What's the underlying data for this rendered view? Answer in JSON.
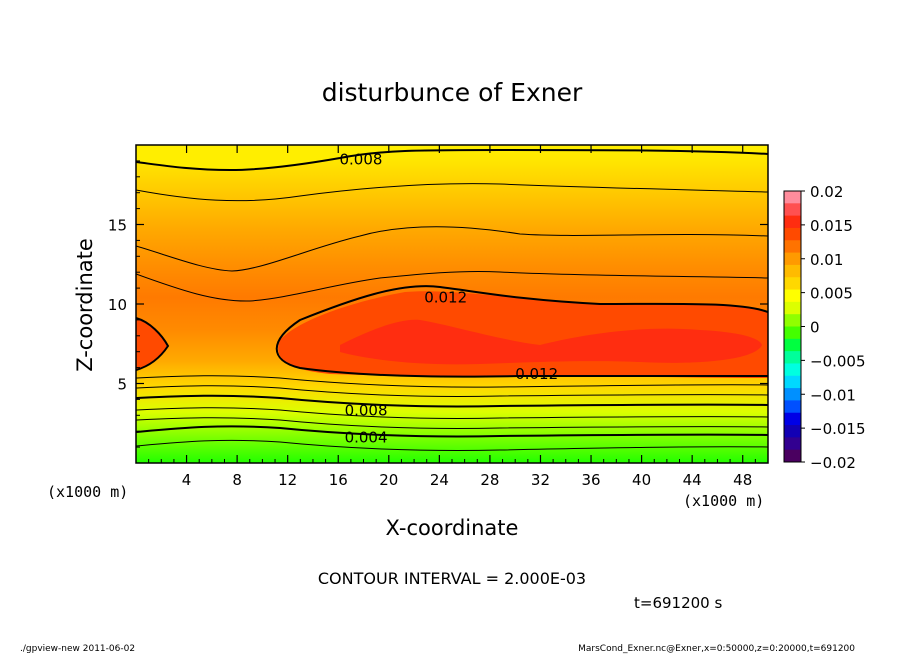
{
  "chart_data": {
    "type": "contour",
    "title": "disturbunce of Exner",
    "xlabel": "X-coordinate",
    "ylabel": "Z-coordinate",
    "x_unit_left": "(x1000 m)",
    "x_unit_right": "(x1000 m)",
    "xlim": [
      0,
      50
    ],
    "ylim": [
      0,
      20
    ],
    "x_ticks": [
      "4",
      "8",
      "12",
      "16",
      "20",
      "24",
      "28",
      "32",
      "36",
      "40",
      "44",
      "48"
    ],
    "x_tick_values": [
      4,
      8,
      12,
      16,
      20,
      24,
      28,
      32,
      36,
      40,
      44,
      48
    ],
    "y_ticks": [
      "5",
      "10",
      "15"
    ],
    "y_tick_values": [
      5,
      10,
      15
    ],
    "contour_labels": [
      {
        "text": "0.008",
        "x": 17.8,
        "z": 19.1
      },
      {
        "text": "0.012",
        "x": 24.5,
        "z": 10.4
      },
      {
        "text": "0.012",
        "x": 31.7,
        "z": 5.6
      },
      {
        "text": "0.008",
        "x": 18.2,
        "z": 3.3
      },
      {
        "text": "0.004",
        "x": 18.2,
        "z": 1.6
      }
    ],
    "colorbar": {
      "labels": [
        "0.02",
        "0.015",
        "0.01",
        "0.005",
        "0",
        "−0.005",
        "−0.01",
        "−0.015",
        "−0.02"
      ],
      "values": [
        0.02,
        0.015,
        0.01,
        0.005,
        0,
        -0.005,
        -0.01,
        -0.015,
        -0.02
      ],
      "range": [
        -0.02,
        0.02
      ],
      "colors": [
        "#ff8c9c",
        "#ff5050",
        "#ff2d10",
        "#ff4a00",
        "#ff7300",
        "#ff9a00",
        "#ffbb00",
        "#ffd800",
        "#ffff00",
        "#dcff00",
        "#90ff00",
        "#44ff00",
        "#00ff40",
        "#00ff9a",
        "#00ffe0",
        "#00d8ff",
        "#0090ff",
        "#0050ff",
        "#0000e6",
        "#1200b4",
        "#320090",
        "#4a0060"
      ]
    },
    "field_profile_note": "",
    "contour_interval": "CONTOUR INTERVAL = 2.000E-03",
    "time": "t=691200 s"
  },
  "footer": {
    "left": "./gpview-new   2011-06-02",
    "right": "MarsCond_Exner.nc@Exner,x=0:50000,z=0:20000,t=691200"
  }
}
